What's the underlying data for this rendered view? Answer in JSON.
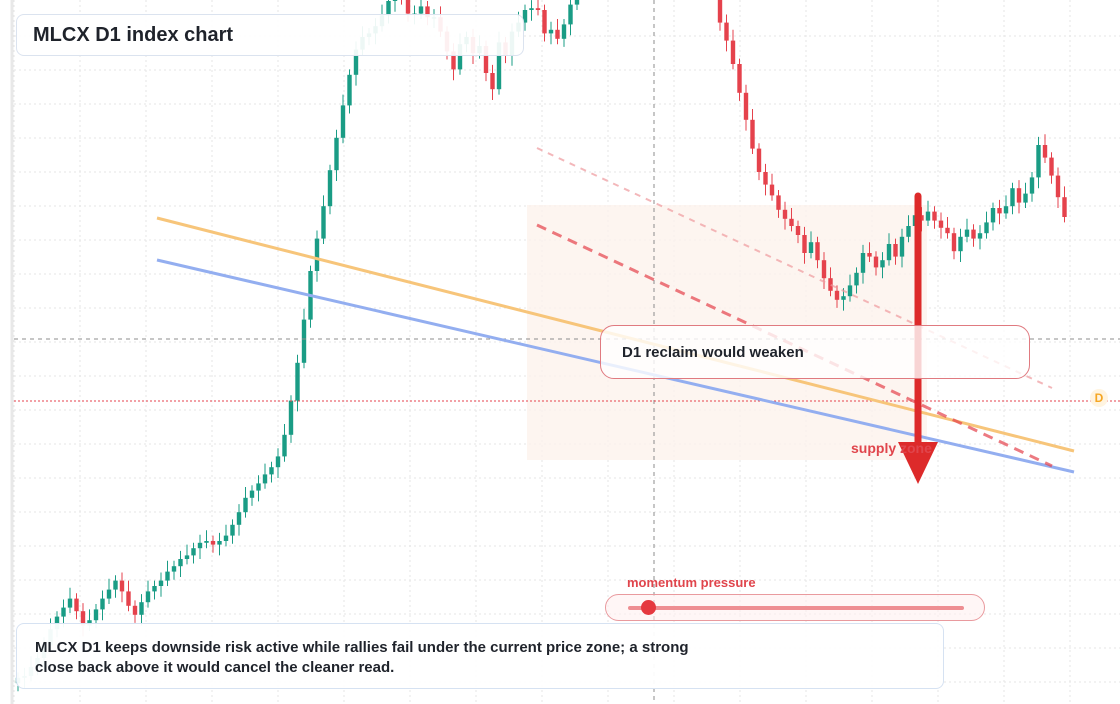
{
  "title": "MLCX D1 index chart",
  "note": "MLCX D1 keeps downside risk active while rallies fail under the current price zone; a strong close back above it would cancel the cleaner read.",
  "callout": "D1 reclaim would weaken",
  "momentum": {
    "label": "momentum pressure",
    "level": 0.06
  },
  "zone_label": "supply zone",
  "price_tag": "D",
  "colors": {
    "up": "#1a9c85",
    "down": "#e5424c",
    "orange_line": "#f7c57a",
    "blue_line": "#93aef0",
    "arrow": "#dd2a2a",
    "zone": "#fdf3ec"
  },
  "chart_data": {
    "type": "candlestick",
    "timeframe": "D1",
    "symbol": "MLCX",
    "closes": [
      4,
      5,
      10,
      15,
      22,
      31,
      38,
      43,
      48,
      41,
      33,
      36,
      42,
      48,
      53,
      58,
      52,
      44,
      39,
      46,
      52,
      55,
      58,
      63,
      66,
      70,
      72,
      76,
      79,
      80,
      78,
      80,
      83,
      89,
      96,
      104,
      108,
      112,
      117,
      121,
      127,
      139,
      158,
      179,
      203,
      230,
      248,
      266,
      286,
      304,
      322,
      339,
      353,
      360,
      362,
      366,
      372,
      380,
      388,
      381,
      373,
      373,
      377,
      371,
      371,
      363,
      352,
      342,
      356,
      360,
      351,
      355,
      340,
      331,
      357,
      350,
      363,
      368,
      375,
      376,
      375,
      362,
      364,
      359,
      367,
      378,
      386,
      393,
      405,
      412,
      414,
      411,
      416,
      439,
      468,
      496,
      522,
      541,
      559,
      575,
      560,
      546,
      528,
      490,
      458,
      434,
      405,
      384,
      368,
      358,
      345,
      329,
      314,
      298,
      285,
      278,
      272,
      264,
      259,
      255,
      250,
      240,
      246,
      236,
      226,
      219,
      214,
      216,
      222,
      229,
      240,
      238,
      232,
      236,
      245,
      238,
      249,
      255,
      261,
      258,
      263,
      258,
      254,
      251,
      241,
      249,
      253,
      248,
      251,
      257,
      265,
      262,
      266,
      276,
      268,
      273,
      282,
      300,
      293,
      283,
      271,
      260
    ]
  }
}
